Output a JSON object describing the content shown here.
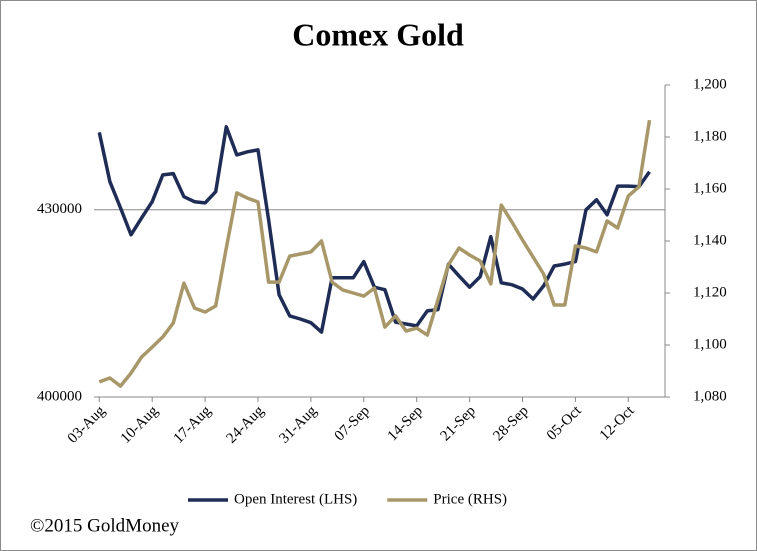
{
  "chart_data": {
    "type": "line",
    "title": "Comex Gold",
    "footer": "©2015 GoldMoney",
    "categories": [
      "03-Aug",
      null,
      null,
      null,
      null,
      "10-Aug",
      null,
      null,
      null,
      null,
      "17-Aug",
      null,
      null,
      null,
      null,
      "24-Aug",
      null,
      null,
      null,
      null,
      "31-Aug",
      null,
      null,
      null,
      null,
      "07-Sep",
      null,
      null,
      null,
      null,
      "14-Sep",
      null,
      null,
      null,
      null,
      "21-Sep",
      null,
      null,
      null,
      null,
      "28-Sep",
      null,
      null,
      null,
      null,
      "05-Oct",
      null,
      null,
      null,
      null,
      "12-Oct",
      null,
      null
    ],
    "series": [
      {
        "name": "Open Interest (LHS)",
        "color": "#1f2d56",
        "axis": "y",
        "values": [
          442400,
          434500,
          430300,
          426000,
          428700,
          431300,
          435600,
          435800,
          432100,
          431300,
          431100,
          432900,
          443300,
          438800,
          439300,
          439600,
          428400,
          416400,
          413000,
          412500,
          411900,
          410400,
          419100,
          419100,
          419100,
          421700,
          417600,
          417200,
          412000,
          411700,
          411400,
          413800,
          414000,
          421300,
          419400,
          417600,
          419300,
          425700,
          418300,
          418000,
          417300,
          415700,
          417800,
          421000,
          421300,
          421700,
          430000,
          431600,
          429200,
          433800,
          433800,
          433700,
          436100
        ]
      },
      {
        "name": "Price (RHS)",
        "color": "#a89768",
        "axis": "y2",
        "values": [
          1085.8,
          1087.3,
          1084.2,
          1089.2,
          1095.4,
          1099.2,
          1103.1,
          1108.5,
          1123.8,
          1114.2,
          1112.7,
          1115.0,
          1137.3,
          1158.5,
          1156.5,
          1155.0,
          1124.2,
          1124.2,
          1134.2,
          1135.0,
          1135.8,
          1140.0,
          1124.2,
          1121.2,
          1120.0,
          1118.8,
          1121.9,
          1106.9,
          1111.2,
          1105.4,
          1106.5,
          1103.8,
          1117.3,
          1130.8,
          1137.3,
          1134.6,
          1132.3,
          1123.5,
          1153.8,
          1147.3,
          1140.4,
          1133.8,
          1127.3,
          1115.4,
          1115.4,
          1138.1,
          1137.3,
          1135.8,
          1147.7,
          1145.0,
          1157.3,
          1160.8,
          1186.5
        ]
      }
    ],
    "ylim": [
      400000,
      450000
    ],
    "yticks": [
      400000,
      430000
    ],
    "y2lim": [
      1080,
      1200
    ],
    "y2ticks": [
      {
        "value": 1080,
        "label": "1,080"
      },
      {
        "value": 1100,
        "label": "1,100"
      },
      {
        "value": 1120,
        "label": "1,120"
      },
      {
        "value": 1140,
        "label": "1,140"
      },
      {
        "value": 1160,
        "label": "1,160"
      },
      {
        "value": 1180,
        "label": "1,180"
      },
      {
        "value": 1200,
        "label": "1,200"
      }
    ],
    "grid": true,
    "legend": "bottom"
  }
}
